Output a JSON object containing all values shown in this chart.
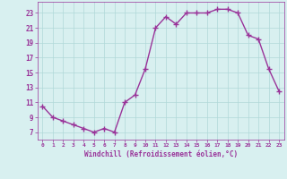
{
  "x": [
    0,
    1,
    2,
    3,
    4,
    5,
    6,
    7,
    8,
    9,
    10,
    11,
    12,
    13,
    14,
    15,
    16,
    17,
    18,
    19,
    20,
    21,
    22,
    23
  ],
  "y": [
    10.5,
    9,
    8.5,
    8,
    7.5,
    7,
    7.5,
    7,
    11,
    12,
    15.5,
    21,
    22.5,
    21.5,
    23,
    23,
    23,
    23.5,
    23.5,
    23,
    20,
    19.5,
    15.5,
    12.5
  ],
  "line_color": "#993399",
  "marker": "+",
  "marker_size": 4,
  "xlabel": "Windchill (Refroidissement éolien,°C)",
  "xlabel_color": "#993399",
  "bg_color": "#d8f0f0",
  "grid_color": "#b0d8d8",
  "tick_color": "#993399",
  "xlim": [
    -0.5,
    23.5
  ],
  "ylim": [
    6,
    24.5
  ],
  "yticks": [
    7,
    9,
    11,
    13,
    15,
    17,
    19,
    21,
    23
  ],
  "xticks": [
    0,
    1,
    2,
    3,
    4,
    5,
    6,
    7,
    8,
    9,
    10,
    11,
    12,
    13,
    14,
    15,
    16,
    17,
    18,
    19,
    20,
    21,
    22,
    23
  ]
}
